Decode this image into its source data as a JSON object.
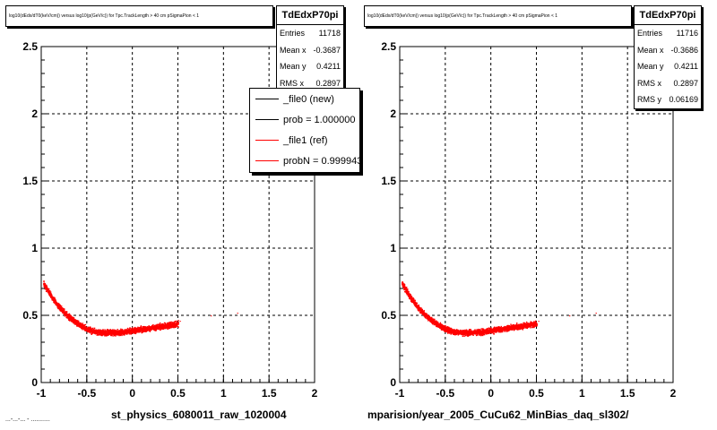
{
  "panels": [
    {
      "title": "log10(dEdx/dT0(keV/cm)) versus log10(p(GeV/c)) for Tpc.TrackLength > 40 cm pSigmaPion < 1",
      "stats": {
        "name": "TdEdxP70pi",
        "rows": [
          {
            "label": "Entries",
            "value": "11718"
          },
          {
            "label": "Mean x",
            "value": "-0.3687"
          },
          {
            "label": "Mean y",
            "value": "0.4211"
          },
          {
            "label": "RMS x",
            "value": "0.2897"
          }
        ]
      },
      "legend": [
        {
          "label": "_file0 (new)",
          "color": "#000000"
        },
        {
          "label": "prob = 1.000000",
          "color": "#000000"
        },
        {
          "label": "_file1 (ref)",
          "color": "#ff0000"
        },
        {
          "label": "probN = 0.999943",
          "color": "#ff0000"
        }
      ],
      "x_title": "st_physics_6080011_raw_1020004"
    },
    {
      "title": "log10(dEdx/dT0(keV/cm)) versus log10(p(GeV/c)) for Tpc.TrackLength > 40 cm pSigmaPion < 1",
      "stats": {
        "name": "TdEdxP70pi",
        "rows": [
          {
            "label": "Entries",
            "value": "11716"
          },
          {
            "label": "Mean x",
            "value": "-0.3686"
          },
          {
            "label": "Mean y",
            "value": "0.4211"
          },
          {
            "label": "RMS x",
            "value": "0.2897"
          },
          {
            "label": "RMS y",
            "value": "0.06169"
          }
        ]
      },
      "x_title": "mparision/year_2005_CuCu62_MinBias_daq_sl302/"
    }
  ],
  "footer_fragment": "...-...-... - ...........",
  "chart_data": [
    {
      "type": "scatter",
      "title": "log10(dEdx/dT0(keV/cm)) versus log10(p(GeV/c)) for Tpc.TrackLength > 40 cm pSigmaPion < 1",
      "xlabel": "st_physics_6080011_raw_1020004",
      "ylabel": "",
      "xlim": [
        -1,
        2
      ],
      "ylim": [
        0,
        2.5
      ],
      "xticks": [
        "-1",
        "-0.5",
        "0",
        "0.5",
        "1",
        "1.5",
        "2"
      ],
      "yticks": [
        "0",
        "0.5",
        "1",
        "1.5",
        "2",
        "2.5"
      ],
      "grid": true,
      "series": [
        {
          "name": "_file1 (ref)",
          "color": "#ff0000",
          "x": [
            -0.98,
            -0.9,
            -0.8,
            -0.7,
            -0.6,
            -0.5,
            -0.4,
            -0.3,
            -0.2,
            -0.1,
            0,
            0.1,
            0.2,
            0.3,
            0.4,
            0.5
          ],
          "y": [
            0.74,
            0.65,
            0.56,
            0.49,
            0.44,
            0.4,
            0.38,
            0.375,
            0.375,
            0.38,
            0.39,
            0.4,
            0.41,
            0.42,
            0.43,
            0.44
          ]
        }
      ]
    },
    {
      "type": "scatter",
      "title": "log10(dEdx/dT0(keV/cm)) versus log10(p(GeV/c)) for Tpc.TrackLength > 40 cm pSigmaPion < 1",
      "xlabel": "mparision/year_2005_CuCu62_MinBias_daq_sl302/",
      "ylabel": "",
      "xlim": [
        -1,
        2
      ],
      "ylim": [
        0,
        2.5
      ],
      "xticks": [
        "-1",
        "-0.5",
        "0",
        "0.5",
        "1",
        "1.5",
        "2"
      ],
      "yticks": [
        "0",
        "0.5",
        "1",
        "1.5",
        "2",
        "2.5"
      ],
      "grid": true,
      "series": [
        {
          "color": "#ff0000",
          "x": [
            -0.98,
            -0.9,
            -0.8,
            -0.7,
            -0.6,
            -0.5,
            -0.4,
            -0.3,
            -0.2,
            -0.1,
            0,
            0.1,
            0.2,
            0.3,
            0.4,
            0.5
          ],
          "y": [
            0.74,
            0.65,
            0.56,
            0.49,
            0.44,
            0.4,
            0.38,
            0.375,
            0.375,
            0.38,
            0.39,
            0.4,
            0.41,
            0.42,
            0.43,
            0.44
          ]
        }
      ]
    }
  ]
}
